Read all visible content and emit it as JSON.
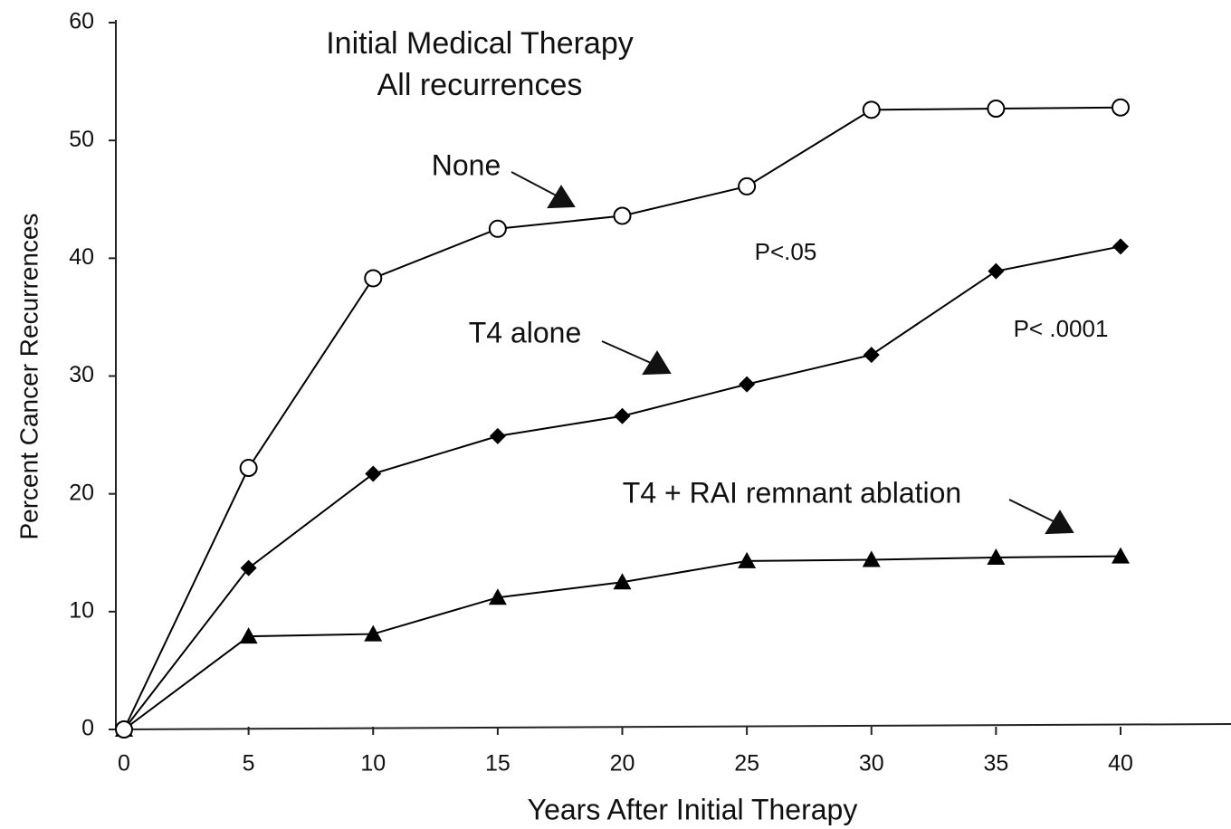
{
  "chart_data": {
    "type": "line",
    "title": [
      "Initial Medical Therapy",
      "All recurrences"
    ],
    "xlabel": "Years After Initial Therapy",
    "ylabel": "Percent Cancer Recurrences",
    "x": [
      0,
      5,
      10,
      15,
      20,
      25,
      30,
      35,
      40
    ],
    "series": [
      {
        "name": "None",
        "color": "#000000",
        "marker": "open-circle",
        "values": [
          0,
          22.2,
          38.3,
          42.5,
          43.6,
          46.1,
          52.6,
          52.7,
          52.8
        ]
      },
      {
        "name": "T4 alone",
        "color": "#000000",
        "marker": "diamond",
        "values": [
          0,
          13.7,
          21.7,
          24.9,
          26.6,
          29.3,
          31.8,
          38.9,
          41.0
        ]
      },
      {
        "name": "T4 + RAI remnant ablation",
        "color": "#000000",
        "marker": "triangle",
        "values": [
          0,
          7.9,
          8.1,
          11.2,
          12.5,
          14.3,
          14.4,
          14.6,
          14.7
        ]
      }
    ],
    "annotations": [
      "P<.05",
      "P< .0001"
    ],
    "xlim": [
      0,
      40
    ],
    "xticks": [
      0,
      5,
      10,
      15,
      20,
      25,
      30,
      35,
      40
    ],
    "ylim": [
      0,
      60
    ],
    "yticks": [
      0,
      10,
      20,
      30,
      40,
      50,
      60
    ],
    "grid": false
  }
}
